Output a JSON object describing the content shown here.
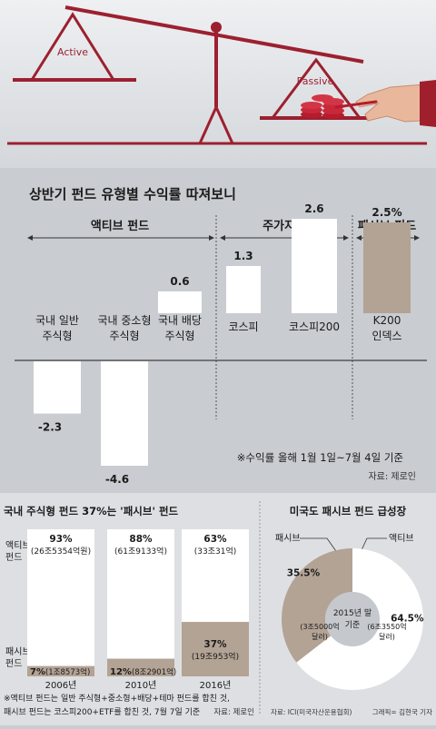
{
  "header": {
    "scale_left_label": "Active",
    "scale_right_label": "Passive"
  },
  "main_chart": {
    "title": "상반기 펀드 유형별 수익률 따져보니",
    "group_labels": [
      "액티브 펀드",
      "주가지수",
      "패시브 펀드"
    ],
    "note": "※수익률 올해 1월 1일~7월 4일 기준",
    "source": "자료: 제로인",
    "colors": {
      "positive_bar": "#ffffff",
      "passive_bar": "#b3a394",
      "bg": "#c9ccd1"
    }
  },
  "bottom_left": {
    "title": "국내 주식형 펀드 37%는 '패시브' 펀드",
    "legend_active": [
      "액티브",
      "펀드"
    ],
    "legend_passive": [
      "패시브",
      "펀드"
    ],
    "note_lines": [
      "※액티브 펀드는 일반 주식형+중소형+배당+테마 펀드를 합친 것,",
      "패시브 펀드는 코스피200+ETF를 합친 것, 7월 7일 기준"
    ],
    "source": "자료: 제로인"
  },
  "bottom_right": {
    "title": "미국도 패시브 펀드 급성장",
    "label_passive": "패시브",
    "label_active": "액티브",
    "center_lines": [
      "2015년 말",
      "기준"
    ],
    "passive_value_lines": [
      "(3조5000억",
      "달러)"
    ],
    "active_value_lines": [
      "(6조3550억",
      "달러)"
    ],
    "source": "자료: ICI(미국자산운용협회)",
    "credit": "그래픽= 김현국 기자"
  },
  "chart_data": [
    {
      "type": "bar",
      "title": "상반기 펀드 유형별 수익률 따져보니",
      "categories": [
        [
          "국내 일반",
          "주식형"
        ],
        [
          "국내 중소형",
          "주식형"
        ],
        [
          "국내 배당",
          "주식형"
        ],
        [
          "코스피"
        ],
        [
          "코스피200"
        ],
        [
          "K200",
          "인덱스"
        ]
      ],
      "values": [
        -2.3,
        -4.6,
        0.6,
        1.3,
        2.6,
        2.5
      ],
      "value_labels": [
        "-2.3",
        "-4.6",
        "0.6",
        "1.3",
        "2.6",
        "2.5%"
      ],
      "groups": [
        {
          "name": "액티브 펀드",
          "members": [
            0,
            1,
            2
          ]
        },
        {
          "name": "주가지수",
          "members": [
            3,
            4
          ]
        },
        {
          "name": "패시브 펀드",
          "members": [
            5
          ]
        }
      ],
      "unit": "%",
      "note": "※수익률 올해 1월 1일~7월 4일 기준"
    },
    {
      "type": "bar",
      "stacked": true,
      "percent": true,
      "title": "국내 주식형 펀드 37%는 '패시브' 펀드",
      "categories": [
        "2006년",
        "2010년",
        "2016년"
      ],
      "series": [
        {
          "name": "액티브 펀드",
          "values": [
            93,
            88,
            63
          ],
          "labels": [
            "93%",
            "88%",
            "63%"
          ],
          "amounts": [
            "(26조5354억원)",
            "(61조9133억)",
            "(33조31억)"
          ]
        },
        {
          "name": "패시브 펀드",
          "values": [
            7,
            12,
            37
          ],
          "labels": [
            "7%",
            "12%",
            "37%"
          ],
          "amounts": [
            "(1조8573억)",
            "(8조2901억)",
            "(19조953억)"
          ]
        }
      ]
    },
    {
      "type": "pie",
      "donut": true,
      "title": "미국도 패시브 펀드 급성장",
      "categories": [
        "패시브",
        "액티브"
      ],
      "values": [
        35.5,
        64.5
      ],
      "labels": [
        "35.5%",
        "64.5%"
      ],
      "colors": [
        "#b3a394",
        "#ffffff"
      ]
    }
  ]
}
